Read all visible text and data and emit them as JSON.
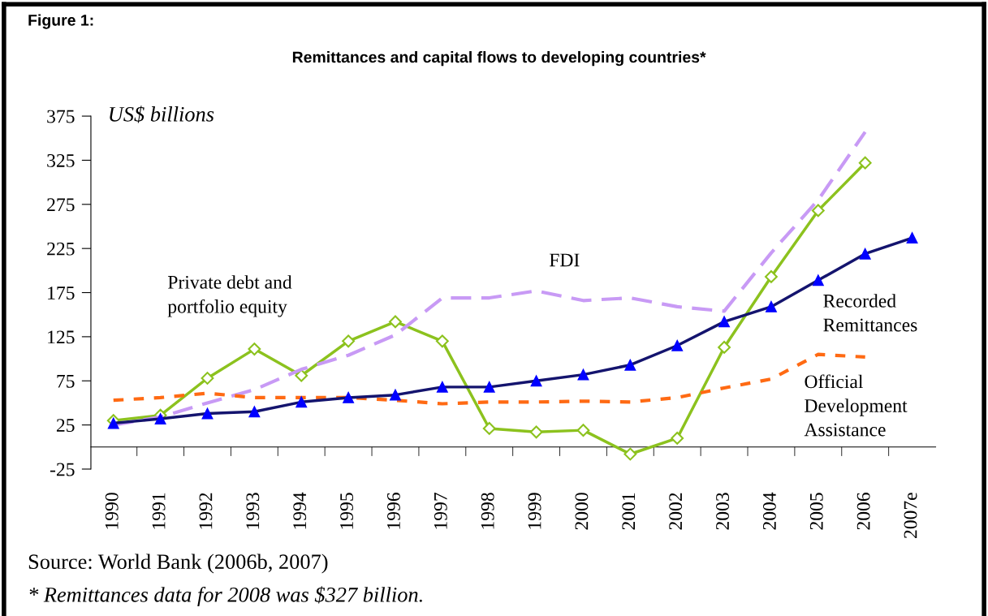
{
  "chart_data": {
    "type": "line",
    "title": "Remittances and capital flows to developing countries*",
    "subtitle": "Figure 1:",
    "ylabel": "US$ billions",
    "categories": [
      "1990",
      "1991",
      "1992",
      "1993",
      "1994",
      "1995",
      "1996",
      "1997",
      "1998",
      "1999",
      "2000",
      "2001",
      "2002",
      "2003",
      "2004",
      "2005",
      "2006",
      "2007e"
    ],
    "series": [
      {
        "name": "Recorded\nRemittances",
        "color": "#14146e",
        "marker": "triangle",
        "line_style": "solid",
        "values": [
          27,
          32,
          38,
          40,
          51,
          56,
          59,
          68,
          68,
          75,
          82,
          93,
          115,
          142,
          159,
          189,
          219,
          237
        ]
      },
      {
        "name": "Private debt and\nportfolio equity",
        "color": "#8cc21e",
        "marker": "diamond",
        "line_style": "solid",
        "values": [
          30,
          36,
          78,
          111,
          81,
          120,
          142,
          120,
          21,
          17,
          19,
          -8,
          10,
          113,
          193,
          268,
          322,
          null
        ]
      },
      {
        "name": "FDI",
        "color": "#c89af5",
        "marker": "none",
        "line_style": "dashed",
        "values": [
          25,
          34,
          50,
          65,
          88,
          104,
          127,
          169,
          169,
          177,
          166,
          169,
          159,
          154,
          220,
          280,
          357,
          null
        ]
      },
      {
        "name": "Official\nDevelopment\nAssistance",
        "color": "#ff6a13",
        "marker": "none",
        "line_style": "dotted",
        "values": [
          53,
          56,
          61,
          56,
          56,
          56,
          53,
          49,
          51,
          51,
          52,
          51,
          56,
          67,
          77,
          105,
          102,
          null
        ]
      }
    ],
    "ylim": [
      -25,
      375
    ],
    "yticks": [
      -25,
      25,
      75,
      125,
      175,
      225,
      275,
      325,
      375
    ],
    "grid": false,
    "annotations": [
      "Source: World Bank (2006b, 2007)",
      "* Remittances data for 2008 was $327 billion."
    ]
  }
}
